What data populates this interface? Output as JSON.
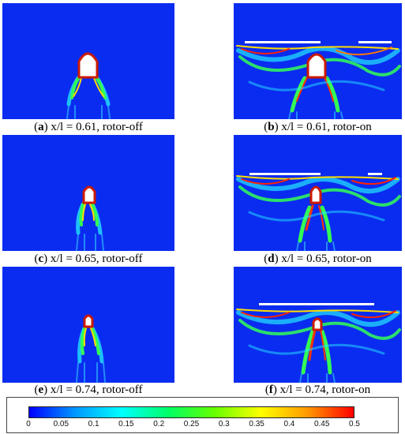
{
  "panels": [
    {
      "letter": "a",
      "text": " x/l = 0.61, rotor-off",
      "rotor": "off"
    },
    {
      "letter": "b",
      "text": " x/l = 0.61, rotor-on",
      "rotor": "on"
    },
    {
      "letter": "c",
      "text": " x/l = 0.65, rotor-off",
      "rotor": "off"
    },
    {
      "letter": "d",
      "text": " x/l = 0.65, rotor-on",
      "rotor": "on"
    },
    {
      "letter": "e",
      "text": " x/l = 0.74, rotor-off",
      "rotor": "off"
    },
    {
      "letter": "f",
      "text": " x/l = 0.74, rotor-on",
      "rotor": "on"
    }
  ],
  "paren_open": "(",
  "paren_close": ")",
  "colorbar": {
    "min": 0,
    "max": 0.5,
    "ticks": [
      "0",
      "0.05",
      "0.1",
      "0.15",
      "0.2",
      "0.25",
      "0.3",
      "0.35",
      "0.4",
      "0.45",
      "0.5"
    ],
    "colors": [
      "#0000ff",
      "#0099ff",
      "#00ffff",
      "#00ff66",
      "#66ff00",
      "#ffff00",
      "#ff9900",
      "#ff0000"
    ]
  },
  "colors": {
    "field_bg": "#0a2cf0",
    "body_fill": "#ffffff",
    "body_edge": "#cc1a00"
  }
}
